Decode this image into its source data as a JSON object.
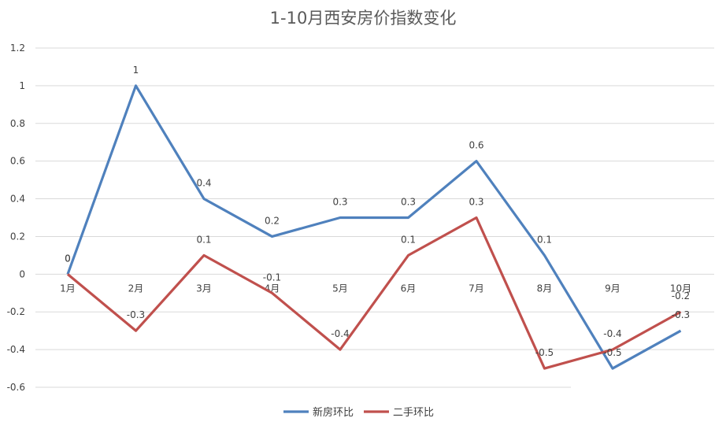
{
  "chart_data": {
    "type": "line",
    "title": "1-10月西安房价指数变化",
    "categories": [
      "1月",
      "2月",
      "3月",
      "4月",
      "5月",
      "6月",
      "7月",
      "8月",
      "9月",
      "10月"
    ],
    "series": [
      {
        "name": "新房环比",
        "color": "#4f81bd",
        "values": [
          0,
          1,
          0.4,
          0.2,
          0.3,
          0.3,
          0.6,
          0.1,
          -0.5,
          -0.3
        ],
        "labels": [
          "0",
          "1",
          "0.4",
          "0.2",
          "0.3",
          "0.3",
          "0.6",
          "0.1",
          "-0.5",
          "-0.3"
        ]
      },
      {
        "name": "二手环比",
        "color": "#c0504d",
        "values": [
          0,
          -0.3,
          0.1,
          -0.1,
          -0.4,
          0.1,
          0.3,
          -0.5,
          -0.4,
          -0.2
        ],
        "labels": [
          "0",
          "-0.3",
          "0.1",
          "-0.1",
          "-0.4",
          "0.1",
          "0.3",
          "-0.5",
          "-0.4",
          "-0.2"
        ]
      }
    ],
    "yticks": [
      "1.2",
      "1",
      "0.8",
      "0.6",
      "0.4",
      "0.2",
      "0",
      "-0.2",
      "-0.4",
      "-0.6"
    ],
    "ylim": [
      -0.6,
      1.2
    ],
    "grid": true,
    "legend": "bottom"
  }
}
